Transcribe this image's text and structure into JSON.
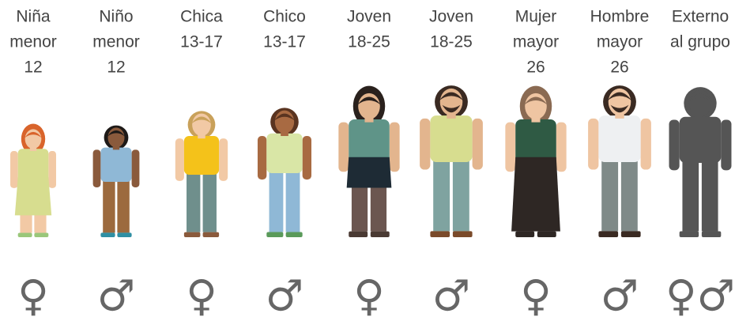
{
  "columns": [
    {
      "label": [
        "Niña",
        "menor",
        "12"
      ],
      "symbol": "♀"
    },
    {
      "label": [
        "Niño",
        "menor",
        "12"
      ],
      "symbol": "♂"
    },
    {
      "label": [
        "Chica",
        "13-17"
      ],
      "symbol": "♀"
    },
    {
      "label": [
        "Chico",
        "13-17"
      ],
      "symbol": "♂"
    },
    {
      "label": [
        "Joven",
        "18-25"
      ],
      "symbol": "♀"
    },
    {
      "label": [
        "Joven",
        "18-25"
      ],
      "symbol": "♂"
    },
    {
      "label": [
        "Mujer",
        "mayor",
        "26"
      ],
      "symbol": "♀"
    },
    {
      "label": [
        "Hombre",
        "mayor",
        "26"
      ],
      "symbol": "♂"
    },
    {
      "label": [
        "Externo",
        "al grupo"
      ],
      "symbol": "♀♂"
    }
  ]
}
